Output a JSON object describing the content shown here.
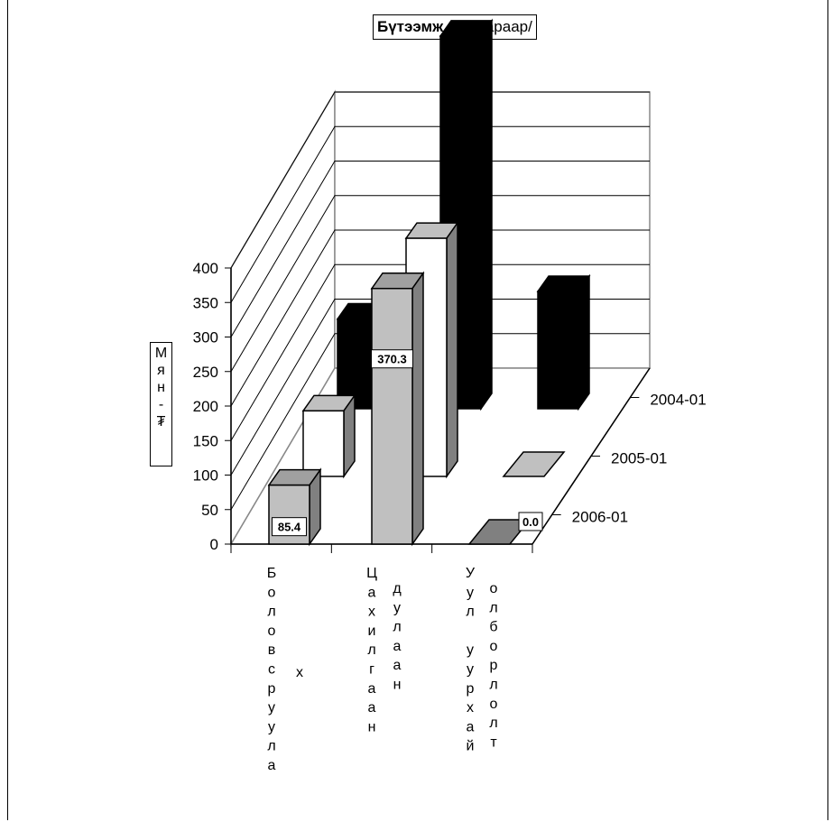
{
  "chart_data": {
    "type": "bar3d",
    "title_bold": "Бүтээмж",
    "title_rest": " /салбараар/",
    "ylabel": "Мян - ₮",
    "ylim": [
      0,
      400
    ],
    "yticks": [
      "0",
      "50",
      "100",
      "150",
      "200",
      "250",
      "300",
      "350",
      "400"
    ],
    "categories": [
      {
        "label": "Боловсруулах",
        "lines": [
          "Боловсруула",
          "х"
        ]
      },
      {
        "label": "Цахилгаан дулаан",
        "lines": [
          "Цахилгаан",
          "дулаан"
        ]
      },
      {
        "label": "Уул уурхай олборлолт",
        "lines": [
          "Уул уурхай",
          "олборлолт"
        ]
      }
    ],
    "series": [
      {
        "name": "2004-01",
        "values": [
          130,
          540,
          170
        ],
        "color": "#000000"
      },
      {
        "name": "2005-01",
        "values": [
          95,
          345,
          0
        ],
        "color": "#ffffff"
      },
      {
        "name": "2006-01",
        "values": [
          85.4,
          370.3,
          0.0
        ],
        "color": "#c0c0c0"
      }
    ],
    "data_labels": [
      "85.4",
      "370.3",
      "0.0"
    ],
    "grid": true,
    "legend": "series-axis-right"
  }
}
